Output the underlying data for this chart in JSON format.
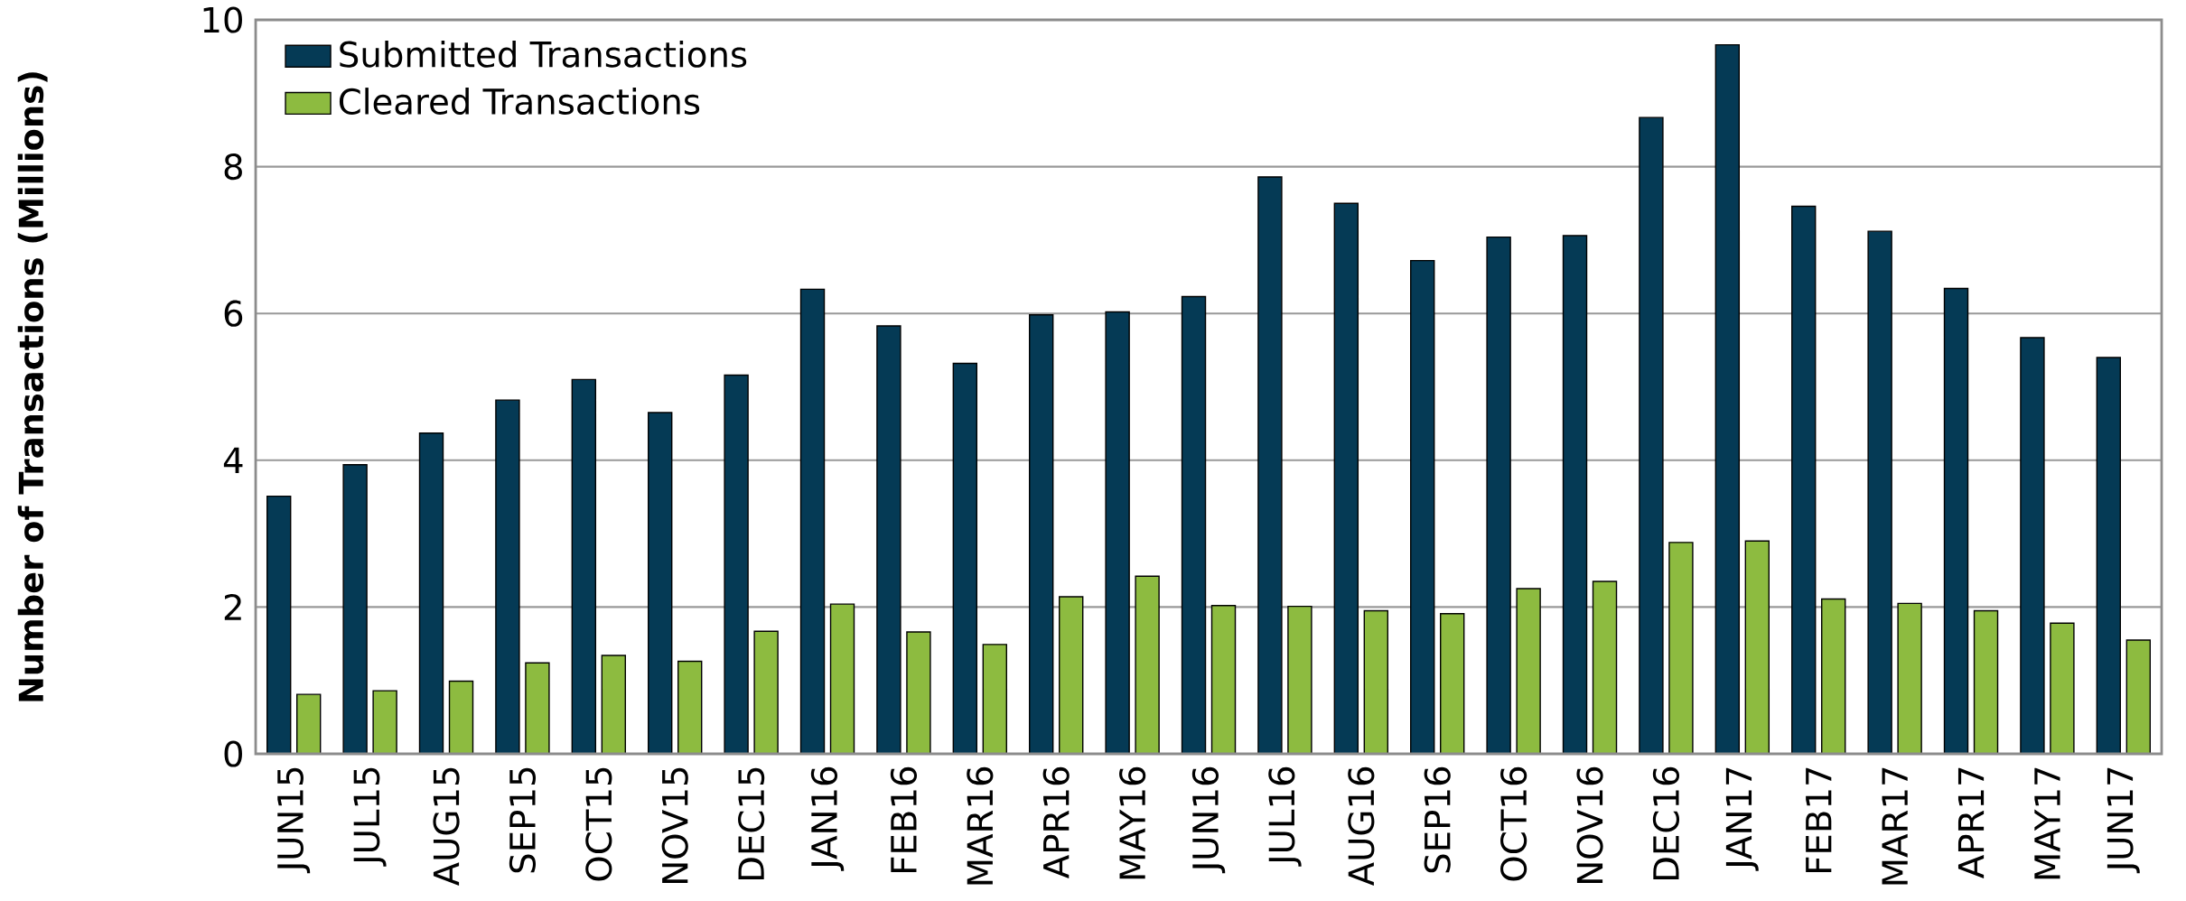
{
  "chart_data": {
    "type": "bar",
    "ylabel": "Number of Transactions (Millions)",
    "categories": [
      "JUN15",
      "JUL15",
      "AUG15",
      "SEP15",
      "OCT15",
      "NOV15",
      "DEC15",
      "JAN16",
      "FEB16",
      "MAR16",
      "APR16",
      "MAY16",
      "JUN16",
      "JUL16",
      "AUG16",
      "SEP16",
      "OCT16",
      "NOV16",
      "DEC16",
      "JAN17",
      "FEB17",
      "MAR17",
      "APR17",
      "MAY17",
      "JUN17"
    ],
    "series": [
      {
        "name": "Submitted Transactions",
        "color": "#053a55",
        "values": [
          3.51,
          3.94,
          4.37,
          4.82,
          5.1,
          4.65,
          5.16,
          6.33,
          5.83,
          5.32,
          5.98,
          6.02,
          6.23,
          7.86,
          7.5,
          6.72,
          7.04,
          7.06,
          8.67,
          9.66,
          7.46,
          7.12,
          6.34,
          5.67,
          5.4
        ]
      },
      {
        "name": "Cleared Transactions",
        "color": "#8dbb40",
        "values": [
          0.81,
          0.86,
          0.99,
          1.24,
          1.34,
          1.26,
          1.67,
          2.04,
          1.66,
          1.49,
          2.14,
          2.42,
          2.02,
          2.01,
          1.95,
          1.91,
          2.25,
          2.35,
          2.88,
          2.9,
          2.11,
          2.05,
          1.95,
          1.78,
          1.55
        ]
      }
    ],
    "ylim": [
      0,
      10
    ],
    "yticks": [
      0,
      2,
      4,
      6,
      8,
      10
    ],
    "grid": "y",
    "legend": "top left"
  }
}
